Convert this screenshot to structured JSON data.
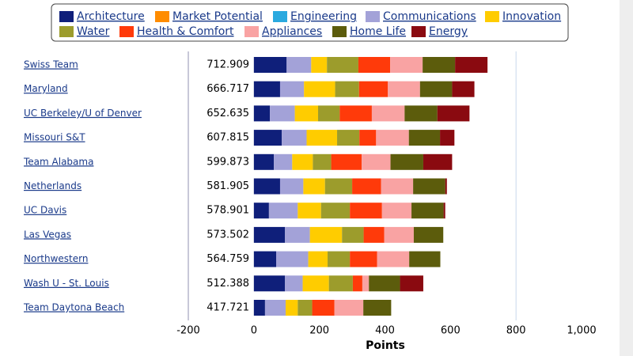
{
  "chart_data": {
    "type": "stacked-bar-horizontal",
    "x_label": "Points",
    "categories": [
      "Swiss Team",
      "Maryland",
      "UC Berkeley/U of Denver",
      "Missouri S&T",
      "Team Alabama",
      "Netherlands",
      "UC Davis",
      "Las Vegas",
      "Northwestern",
      "Wash U - St. Louis",
      "Team Daytona Beach"
    ],
    "totals": [
      712.909,
      666.717,
      652.635,
      607.815,
      599.873,
      581.905,
      578.901,
      573.502,
      564.759,
      512.388,
      417.721
    ],
    "series": [
      {
        "name": "Architecture",
        "color": "#0f1f7a",
        "values": [
          100,
          80,
          49,
          85,
          61,
          80,
          46,
          95,
          68,
          95,
          34
        ]
      },
      {
        "name": "Market Potential",
        "color": "#ff8c00",
        "values": [
          0,
          0,
          0,
          0,
          0,
          0,
          0,
          0,
          0,
          0,
          0
        ]
      },
      {
        "name": "Engineering",
        "color": "#2aa9df",
        "values": [
          0,
          0,
          0,
          0,
          0,
          0,
          0,
          0,
          0,
          0,
          0
        ]
      },
      {
        "name": "Communications",
        "color": "#a3a2d8",
        "values": [
          75,
          73,
          76,
          76,
          56,
          71,
          88,
          76,
          98,
          54,
          63
        ]
      },
      {
        "name": "Innovation",
        "color": "#ffcc00",
        "values": [
          48,
          95,
          71,
          93,
          63,
          66,
          71,
          98,
          59,
          80,
          37
        ]
      },
      {
        "name": "Water",
        "color": "#9c9c2c",
        "values": [
          96,
          73,
          66,
          68,
          56,
          83,
          88,
          66,
          68,
          73,
          44
        ]
      },
      {
        "name": "Health & Comfort",
        "color": "#ff3a0a",
        "values": [
          97,
          88,
          98,
          51,
          93,
          88,
          98,
          63,
          83,
          29,
          68
        ]
      },
      {
        "name": "Appliances",
        "color": "#f9a3a3",
        "values": [
          99,
          98,
          100,
          100,
          88,
          98,
          90,
          90,
          98,
          20,
          88
        ]
      },
      {
        "name": "Home Life",
        "color": "#5c5c0c",
        "values": [
          99,
          98,
          100,
          95,
          100,
          98,
          98,
          90,
          95,
          95,
          85
        ]
      },
      {
        "name": "Energy",
        "color": "#8a0a10",
        "values": [
          99,
          68,
          98,
          44,
          88,
          5,
          5,
          0,
          0,
          71,
          0
        ]
      }
    ],
    "xlim": [
      -200,
      1000
    ],
    "xticks": [
      -200,
      0,
      200,
      400,
      600,
      800,
      {
        "value": 1000,
        "label": "1,000"
      }
    ]
  }
}
